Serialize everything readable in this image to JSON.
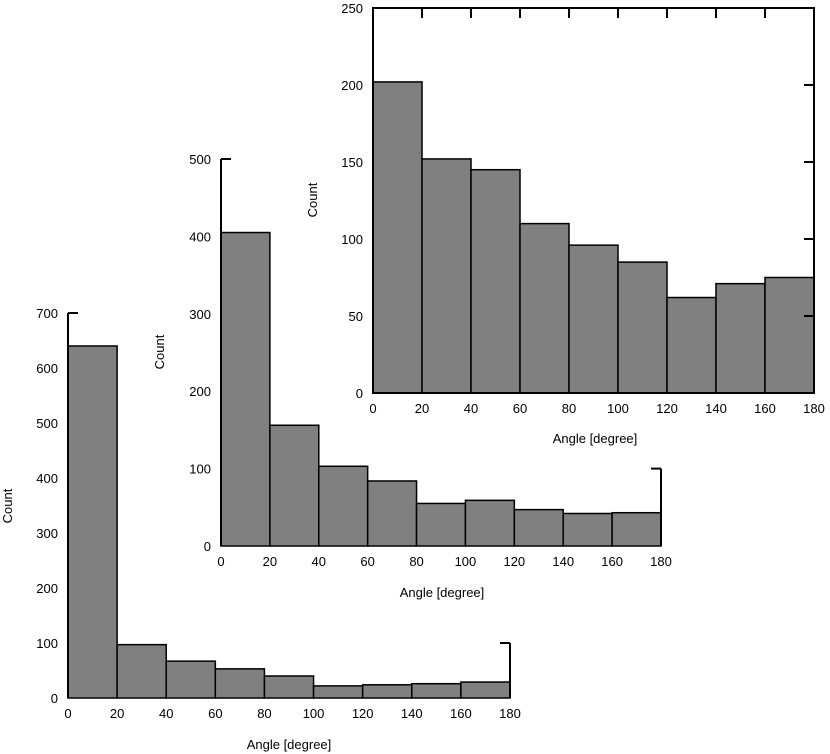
{
  "chart_data": [
    {
      "type": "bar",
      "name": "histogram-bottom",
      "title": "",
      "xlabel": "Angle [degree]",
      "ylabel": "Count",
      "xlim": [
        0,
        180
      ],
      "ylim": [
        0,
        700
      ],
      "x_ticks": [
        0,
        20,
        40,
        60,
        80,
        100,
        120,
        140,
        160,
        180
      ],
      "y_ticks": [
        0,
        100,
        200,
        300,
        400,
        500,
        600,
        700
      ],
      "bin_edges": [
        0,
        20,
        40,
        60,
        80,
        100,
        120,
        140,
        160,
        180
      ],
      "values": [
        640,
        97,
        67,
        53,
        40,
        22,
        24,
        26,
        29
      ],
      "bar_color": "#808080",
      "grid": false,
      "frame": "open"
    },
    {
      "type": "bar",
      "name": "histogram-middle",
      "title": "",
      "xlabel": "Angle [degree]",
      "ylabel": "Count",
      "xlim": [
        0,
        180
      ],
      "ylim": [
        0,
        500
      ],
      "x_ticks": [
        0,
        20,
        40,
        60,
        80,
        100,
        120,
        140,
        160,
        180
      ],
      "y_ticks": [
        0,
        100,
        200,
        300,
        400,
        500
      ],
      "bin_edges": [
        0,
        20,
        40,
        60,
        80,
        100,
        120,
        140,
        160,
        180
      ],
      "values": [
        405,
        156,
        103,
        84,
        55,
        59,
        47,
        42,
        43
      ],
      "bar_color": "#808080",
      "grid": false,
      "frame": "open"
    },
    {
      "type": "bar",
      "name": "histogram-top",
      "title": "",
      "xlabel": "Angle [degree]",
      "ylabel": "Count",
      "xlim": [
        0,
        180
      ],
      "ylim": [
        0,
        250
      ],
      "x_ticks": [
        0,
        20,
        40,
        60,
        80,
        100,
        120,
        140,
        160,
        180
      ],
      "y_ticks": [
        0,
        50,
        100,
        150,
        200,
        250
      ],
      "bin_edges": [
        0,
        20,
        40,
        60,
        80,
        100,
        120,
        140,
        160,
        180
      ],
      "values": [
        202,
        152,
        145,
        110,
        96,
        85,
        62,
        71,
        75
      ],
      "bar_color": "#808080",
      "grid": false,
      "frame": "box"
    }
  ]
}
